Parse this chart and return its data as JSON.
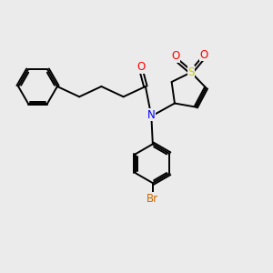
{
  "bg_color": "#ebebeb",
  "bond_color": "#000000",
  "atom_colors": {
    "O": "#ff0000",
    "N": "#0000ff",
    "S": "#cccc00",
    "Br": "#cc6600"
  },
  "bond_width": 1.4,
  "font_size_atom": 8.5
}
